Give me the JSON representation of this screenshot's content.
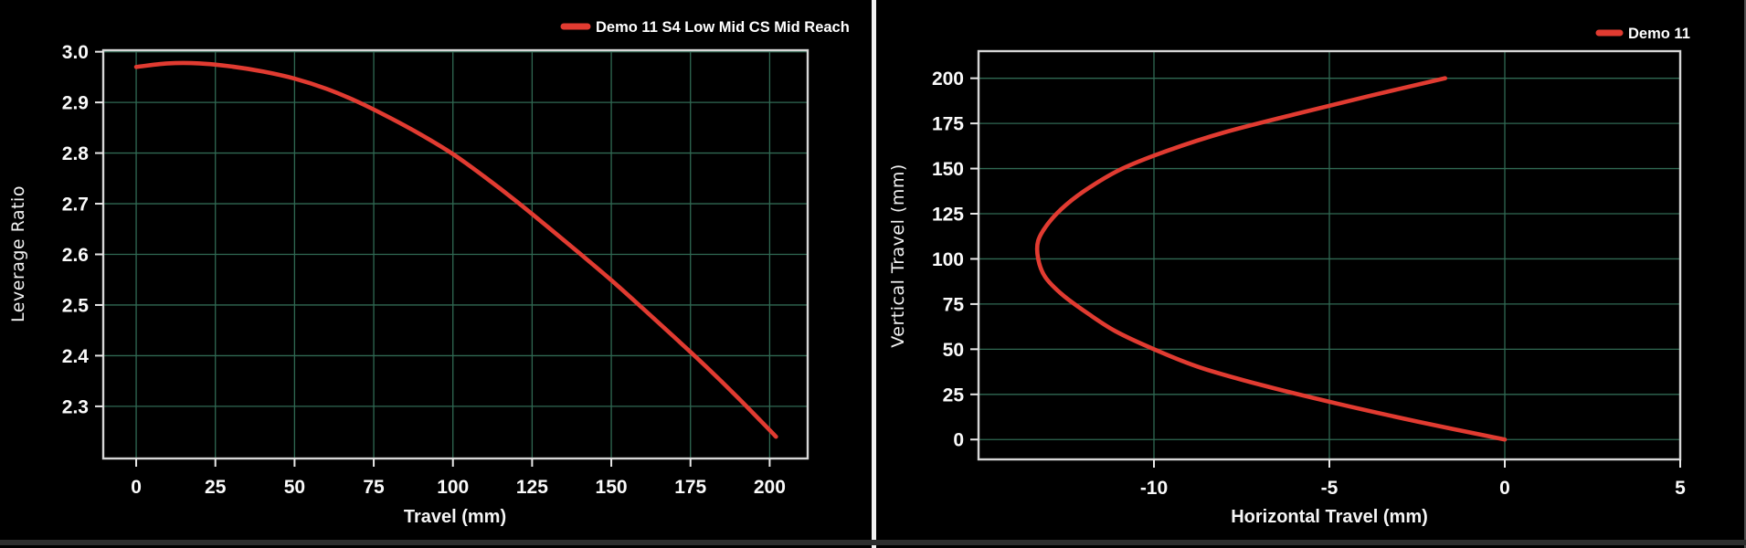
{
  "page": {
    "background": "#000000",
    "divider_color": "#f2f2f2",
    "bottom_strip_color": "#2e2e2e",
    "right_edge_color": "#4f4f4f",
    "spine_color": "#d6d6d6",
    "tick_color": "#e8e8e8",
    "text_color": "#fafafa"
  },
  "chart_data": [
    {
      "type": "line",
      "title": "",
      "xlabel": "Travel (mm)",
      "ylabel": "Leverage Ratio",
      "xlim": [
        -10.4,
        212.0
      ],
      "ylim": [
        2.197,
        3.003
      ],
      "x_ticks": [
        0,
        25,
        50,
        75,
        100,
        125,
        150,
        175,
        200
      ],
      "x_tick_labels": [
        "0",
        "25",
        "50",
        "75",
        "100",
        "125",
        "150",
        "175",
        "200"
      ],
      "y_ticks": [
        3.0,
        2.9,
        2.8,
        2.7,
        2.6,
        2.5,
        2.4,
        2.3
      ],
      "y_tick_labels": [
        "3.0",
        "2.9",
        "2.8",
        "2.7",
        "2.6",
        "2.5",
        "2.4",
        "2.3"
      ],
      "grid": true,
      "grid_color": "#306953",
      "legend_position": "top-right",
      "series": [
        {
          "name": "Demo 11 S4 Low Mid CS Mid Reach",
          "color": "#e13b31",
          "x": [
            0,
            10,
            20,
            30,
            40,
            50,
            60,
            70,
            80,
            90,
            100,
            110,
            120,
            130,
            140,
            150,
            160,
            170,
            180,
            190,
            200,
            202
          ],
          "y": [
            2.97,
            2.977,
            2.977,
            2.971,
            2.961,
            2.947,
            2.927,
            2.901,
            2.87,
            2.836,
            2.798,
            2.753,
            2.705,
            2.654,
            2.602,
            2.549,
            2.493,
            2.436,
            2.378,
            2.317,
            2.253,
            2.24
          ]
        }
      ]
    },
    {
      "type": "line",
      "title": "",
      "xlabel": "Horizontal Travel (mm)",
      "ylabel": "Vertical Travel (mm)",
      "xlim": [
        -15.0,
        5.0
      ],
      "ylim": [
        -11.0,
        215.0
      ],
      "x_ticks": [
        -10,
        -5,
        0,
        5
      ],
      "x_tick_labels": [
        "-10",
        "-5",
        "0",
        "5"
      ],
      "y_ticks": [
        0,
        25,
        50,
        75,
        100,
        125,
        150,
        175,
        200
      ],
      "y_tick_labels": [
        "0",
        "25",
        "50",
        "75",
        "100",
        "125",
        "150",
        "175",
        "200"
      ],
      "grid": true,
      "grid_color": "#306953",
      "legend_position": "top-right",
      "series": [
        {
          "name": "Demo 11",
          "color": "#e13b31",
          "x": [
            0,
            -2.5,
            -4.8,
            -6.9,
            -8.7,
            -10.0,
            -11.1,
            -11.9,
            -12.6,
            -13.1,
            -13.3,
            -13.3,
            -13.0,
            -12.5,
            -11.8,
            -10.9,
            -9.6,
            -8.0,
            -6.0,
            -3.9,
            -1.7
          ],
          "y": [
            0,
            10,
            20,
            30,
            40,
            50,
            60,
            70,
            80,
            90,
            100,
            110,
            120,
            130,
            140,
            150,
            160,
            170,
            180,
            190,
            200
          ]
        }
      ]
    }
  ]
}
